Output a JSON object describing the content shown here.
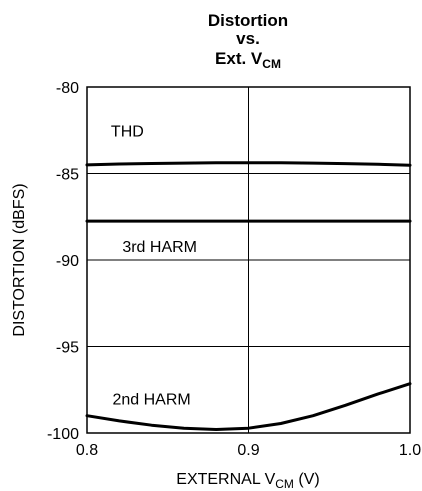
{
  "chart_data": {
    "type": "line",
    "title_lines": [
      "Distortion",
      "vs."
    ],
    "title_line3": {
      "main": "Ext. V",
      "sub": "CM"
    },
    "xlabel": {
      "main": "EXTERNAL V",
      "sub": "CM",
      "suffix": " (V)"
    },
    "ylabel": "DISTORTION (dBFS)",
    "xlim": [
      0.8,
      1.0
    ],
    "ylim": [
      -100,
      -80
    ],
    "x_ticks": [
      0.8,
      0.9,
      1.0
    ],
    "x_tick_labels": [
      "0.8",
      "0.9",
      "1.0"
    ],
    "y_ticks": [
      -80,
      -85,
      -90,
      -95,
      -100
    ],
    "y_tick_labels": [
      "-80",
      "-85",
      "-90",
      "-95",
      "-100"
    ],
    "grid": true,
    "series": [
      {
        "name": "THD",
        "x": [
          0.8,
          0.82,
          0.84,
          0.86,
          0.88,
          0.9,
          0.92,
          0.94,
          0.96,
          0.98,
          1.0
        ],
        "values": [
          -84.5,
          -84.45,
          -84.42,
          -84.4,
          -84.38,
          -84.38,
          -84.38,
          -84.4,
          -84.43,
          -84.47,
          -84.52
        ]
      },
      {
        "name": "3rd HARM",
        "x": [
          0.8,
          0.85,
          0.9,
          0.95,
          1.0
        ],
        "values": [
          -87.75,
          -87.75,
          -87.75,
          -87.75,
          -87.75
        ]
      },
      {
        "name": "2nd HARM",
        "x": [
          0.8,
          0.82,
          0.84,
          0.86,
          0.88,
          0.9,
          0.92,
          0.94,
          0.96,
          0.98,
          1.0
        ],
        "values": [
          -99.0,
          -99.3,
          -99.55,
          -99.72,
          -99.8,
          -99.72,
          -99.45,
          -99.0,
          -98.4,
          -97.75,
          -97.15
        ]
      }
    ]
  }
}
